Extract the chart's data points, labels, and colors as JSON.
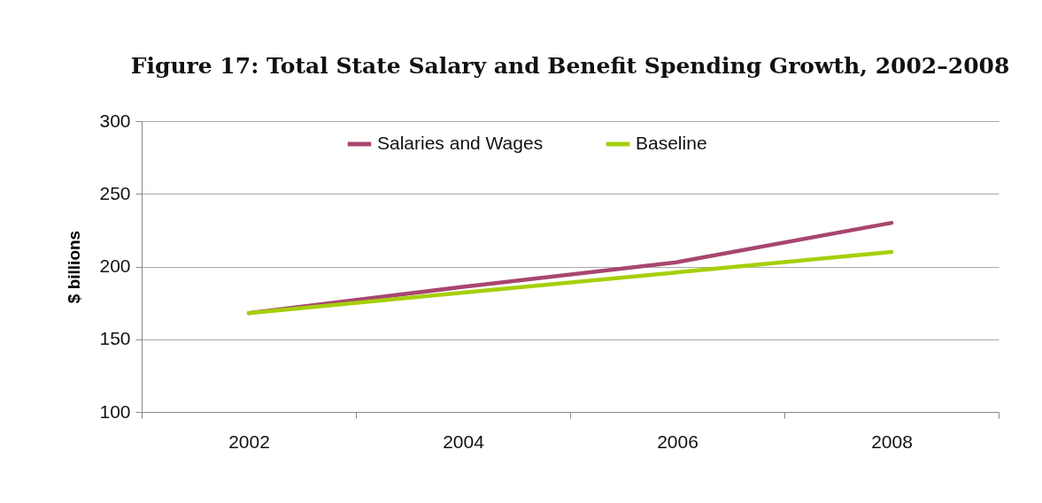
{
  "chart_data": {
    "type": "line",
    "title": "Figure 17:  Total State Salary and Benefit Spending Growth, 2002–2008",
    "ylabel": "$ billions",
    "categories": [
      "2002",
      "2004",
      "2006",
      "2008"
    ],
    "series": [
      {
        "name": "Salaries and Wages",
        "color": "#a8466f",
        "values": [
          168,
          186,
          203,
          230
        ]
      },
      {
        "name": "Baseline",
        "color": "#a6cf0a",
        "values": [
          168,
          182,
          196,
          210
        ]
      }
    ],
    "ylim": [
      100,
      300
    ],
    "yticks": [
      100,
      150,
      200,
      250,
      300
    ],
    "grid": "y",
    "legend": "top",
    "marker": "none",
    "line_style": "solid"
  }
}
